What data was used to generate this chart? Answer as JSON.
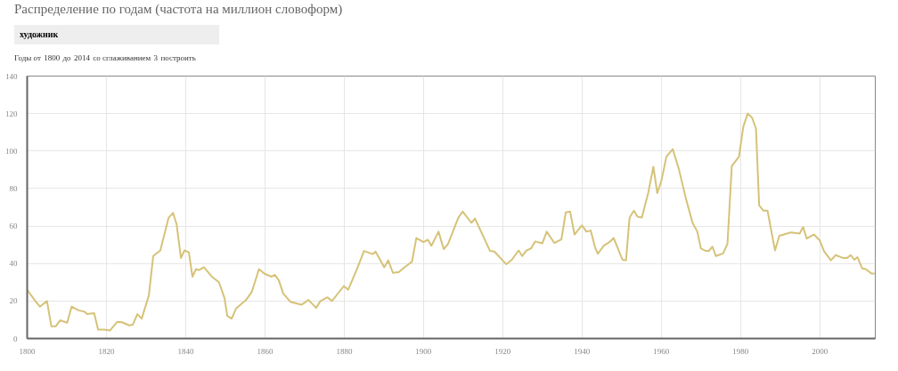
{
  "chart_data": {
    "type": "line",
    "title": "Распределение по годам (частота на миллион словоформ)",
    "subtitle": "художник",
    "annotations": [
      "Годы от",
      "1800",
      "до",
      "2014",
      "со сглаживанием",
      "3",
      "построить"
    ],
    "series": [
      {
        "color": "#d6c278",
        "x": [
          1800,
          1802.2,
          1803.2,
          1805,
          1806.1,
          1807.2,
          1808.3,
          1810.1,
          1811.2,
          1813,
          1814.4,
          1815.2,
          1816.9,
          1817.9,
          1819.5,
          1820.9,
          1822.7,
          1823.8,
          1825.8,
          1826.7,
          1827.8,
          1828.9,
          1830.7,
          1831.8,
          1833.6,
          1835.7,
          1836.8,
          1837.7,
          1838.8,
          1839.7,
          1840.8,
          1841.7,
          1842.6,
          1843.3,
          1844.6,
          1846.6,
          1848.4,
          1849.8,
          1850.5,
          1851.6,
          1852.7,
          1855.2,
          1856.7,
          1858.5,
          1859.9,
          1861.7,
          1862.5,
          1863.5,
          1864.6,
          1866.4,
          1869.2,
          1871,
          1872.9,
          1874,
          1875.8,
          1876.9,
          1879.9,
          1881,
          1883.2,
          1885,
          1887.2,
          1887.9,
          1890.1,
          1891.1,
          1892.3,
          1893.8,
          1895.2,
          1897.1,
          1898.2,
          1900,
          1901.1,
          1902,
          1903.8,
          1905.1,
          1906.2,
          1908.8,
          1909.9,
          1912.1,
          1913,
          1916.8,
          1917.9,
          1920.9,
          1922.3,
          1924,
          1924.9,
          1926,
          1927.1,
          1928.2,
          1930,
          1931.1,
          1933,
          1934.8,
          1935.9,
          1937,
          1938.1,
          1940,
          1941.1,
          1942.2,
          1943.3,
          1944,
          1945.5,
          1946.9,
          1948,
          1950.2,
          1951.1,
          1952,
          1953.1,
          1954,
          1955.1,
          1956.7,
          1958,
          1959,
          1960,
          1961.3,
          1962.9,
          1964.4,
          1966.2,
          1967.9,
          1969.1,
          1970,
          1971.3,
          1972,
          1972.9,
          1973.8,
          1975.6,
          1976.7,
          1977.8,
          1979.6,
          1980.7,
          1981.8,
          1982.9,
          1983.9,
          1984.7,
          1985.8,
          1986.8,
          1988.7,
          1989.8,
          1992.7,
          1994.9,
          1995.8,
          1996.7,
          1998.5,
          2000,
          2001.1,
          2002.8,
          2004,
          2005.8,
          2006.9,
          2007.8,
          2008.7,
          2009.5,
          2010.7,
          2011.6,
          2013.1,
          2013.8
        ],
        "values": [
          26,
          19.6,
          17,
          20,
          6.5,
          6.5,
          9.7,
          8.4,
          17,
          15,
          14.4,
          13,
          13.5,
          4.7,
          4.7,
          4.3,
          8.8,
          8.8,
          7,
          7.5,
          13,
          10.6,
          23,
          44,
          47,
          64.5,
          67,
          61,
          43,
          47,
          46,
          33,
          37,
          36.5,
          38,
          33,
          30,
          21.5,
          12,
          10.6,
          16,
          20.5,
          25,
          37,
          34.5,
          33,
          34,
          31,
          24,
          19.6,
          18,
          20.6,
          16.3,
          20,
          22,
          20,
          28,
          26,
          37,
          46.7,
          45,
          46.4,
          38,
          41.7,
          35,
          35.5,
          38,
          41,
          53.6,
          51.4,
          52.7,
          49.5,
          57,
          47.7,
          50.5,
          64.5,
          67.7,
          61.7,
          64,
          46.7,
          46.4,
          39.6,
          42,
          47,
          44,
          47,
          48,
          51.8,
          50.8,
          57,
          51,
          52.9,
          67.3,
          67.7,
          55.5,
          60.4,
          57,
          57.6,
          48.6,
          45.2,
          49.5,
          51.4,
          53.6,
          42,
          41.7,
          64.5,
          68.2,
          65,
          64.5,
          77.6,
          91.6,
          77.6,
          84,
          97,
          101,
          90.7,
          74.8,
          61.7,
          57,
          48,
          46.7,
          46.7,
          49,
          44,
          45.4,
          50.5,
          92,
          97,
          113,
          120,
          117.8,
          112,
          71,
          68.2,
          68.2,
          47,
          54.8,
          56.6,
          56,
          59.4,
          53.3,
          55.5,
          52.3,
          46.4,
          41.7,
          44.5,
          43,
          43,
          44.5,
          42,
          43.4,
          37.4,
          37,
          34.6,
          34.6
        ]
      }
    ],
    "xlim": [
      1800,
      2014
    ],
    "xticks": [
      1800,
      1820,
      1840,
      1860,
      1880,
      1900,
      1920,
      1940,
      1960,
      1980,
      2000
    ],
    "ylim": [
      0,
      140
    ],
    "yticks": [
      0,
      20,
      40,
      60,
      80,
      100,
      120,
      140
    ],
    "grid": true
  }
}
